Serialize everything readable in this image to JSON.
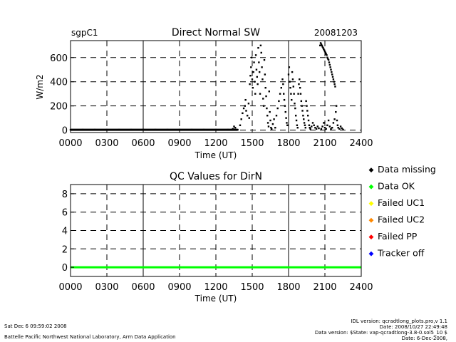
{
  "chart_data": [
    {
      "type": "scatter",
      "site": "sgpC1",
      "title": "Direct Normal SW",
      "date": "20081203",
      "xlabel": "Time (UT)",
      "ylabel": "W/m2",
      "xlim": [
        0,
        2400
      ],
      "ylim": [
        -20,
        740
      ],
      "x_ticks": [
        "0000",
        "0300",
        "0600",
        "0900",
        "1200",
        "1500",
        "1800",
        "2100",
        "2400"
      ],
      "y_ticks": [
        "0",
        "200",
        "400",
        "600"
      ],
      "grid": true,
      "series": [
        {
          "color": "#000000",
          "points": [
            [
              0,
              3
            ],
            [
              100,
              3
            ],
            [
              200,
              3
            ],
            [
              300,
              3
            ],
            [
              400,
              3
            ],
            [
              500,
              3
            ],
            [
              600,
              3
            ],
            [
              700,
              3
            ],
            [
              800,
              3
            ],
            [
              900,
              3
            ],
            [
              1000,
              3
            ],
            [
              1100,
              3
            ],
            [
              1200,
              3
            ],
            [
              1300,
              3
            ],
            [
              1380,
              3
            ],
            [
              1340,
              10
            ],
            [
              1350,
              30
            ],
            [
              1360,
              20
            ],
            [
              1400,
              40
            ],
            [
              1410,
              90
            ],
            [
              1420,
              140
            ],
            [
              1430,
              180
            ],
            [
              1440,
              200
            ],
            [
              1445,
              250
            ],
            [
              1450,
              160
            ],
            [
              1460,
              120
            ],
            [
              1470,
              220
            ],
            [
              1475,
              100
            ],
            [
              1480,
              380
            ],
            [
              1485,
              450
            ],
            [
              1490,
              520
            ],
            [
              1495,
              600
            ],
            [
              1500,
              420
            ],
            [
              1505,
              350
            ],
            [
              1510,
              480
            ],
            [
              1515,
              560
            ],
            [
              1520,
              400
            ],
            [
              1525,
              300
            ],
            [
              1530,
              620
            ],
            [
              1535,
              500
            ],
            [
              1540,
              440
            ],
            [
              1545,
              380
            ],
            [
              1550,
              680
            ],
            [
              1555,
              560
            ],
            [
              1560,
              480
            ],
            [
              1565,
              300
            ],
            [
              1570,
              700
            ],
            [
              1575,
              640
            ],
            [
              1580,
              520
            ],
            [
              1585,
              420
            ],
            [
              1590,
              260
            ],
            [
              1595,
              200
            ],
            [
              1600,
              580
            ],
            [
              1605,
              460
            ],
            [
              1610,
              350
            ],
            [
              1615,
              280
            ],
            [
              1620,
              180
            ],
            [
              1625,
              120
            ],
            [
              1630,
              60
            ],
            [
              1635,
              30
            ],
            [
              1640,
              320
            ],
            [
              1645,
              150
            ],
            [
              1650,
              80
            ],
            [
              1655,
              20
            ],
            [
              1660,
              10
            ],
            [
              1670,
              50
            ],
            [
              1680,
              90
            ],
            [
              1690,
              20
            ],
            [
              1700,
              120
            ],
            [
              1710,
              180
            ],
            [
              1720,
              240
            ],
            [
              1730,
              300
            ],
            [
              1740,
              350
            ],
            [
              1750,
              420
            ],
            [
              1755,
              380
            ],
            [
              1760,
              300
            ],
            [
              1765,
              250
            ],
            [
              1770,
              200
            ],
            [
              1775,
              150
            ],
            [
              1780,
              100
            ],
            [
              1785,
              60
            ],
            [
              1790,
              40
            ],
            [
              1800,
              460
            ],
            [
              1805,
              520
            ],
            [
              1810,
              400
            ],
            [
              1815,
              350
            ],
            [
              1820,
              300
            ],
            [
              1825,
              250
            ],
            [
              1830,
              480
            ],
            [
              1835,
              420
            ],
            [
              1840,
              360
            ],
            [
              1845,
              300
            ],
            [
              1850,
              220
            ],
            [
              1855,
              180
            ],
            [
              1860,
              120
            ],
            [
              1865,
              80
            ],
            [
              1870,
              40
            ],
            [
              1875,
              20
            ],
            [
              1880,
              300
            ],
            [
              1885,
              380
            ],
            [
              1890,
              420
            ],
            [
              1895,
              350
            ],
            [
              1900,
              300
            ],
            [
              1905,
              240
            ],
            [
              1910,
              200
            ],
            [
              1915,
              160
            ],
            [
              1920,
              120
            ],
            [
              1925,
              90
            ],
            [
              1930,
              60
            ],
            [
              1935,
              40
            ],
            [
              1940,
              20
            ],
            [
              1945,
              240
            ],
            [
              1950,
              200
            ],
            [
              1955,
              160
            ],
            [
              1960,
              120
            ],
            [
              1965,
              80
            ],
            [
              1970,
              40
            ],
            [
              1975,
              20
            ],
            [
              1980,
              10
            ],
            [
              1990,
              30
            ],
            [
              2000,
              60
            ],
            [
              2010,
              40
            ],
            [
              2020,
              20
            ],
            [
              2030,
              10
            ],
            [
              2040,
              30
            ],
            [
              2050,
              15
            ],
            [
              2060,
              700
            ],
            [
              2065,
              720
            ],
            [
              2070,
              710
            ],
            [
              2075,
              700
            ],
            [
              2080,
              690
            ],
            [
              2085,
              680
            ],
            [
              2090,
              670
            ],
            [
              2095,
              660
            ],
            [
              2100,
              650
            ],
            [
              2105,
              640
            ],
            [
              2110,
              630
            ],
            [
              2115,
              620
            ],
            [
              2120,
              600
            ],
            [
              2125,
              590
            ],
            [
              2130,
              580
            ],
            [
              2135,
              560
            ],
            [
              2140,
              540
            ],
            [
              2145,
              520
            ],
            [
              2150,
              500
            ],
            [
              2155,
              480
            ],
            [
              2160,
              460
            ],
            [
              2165,
              440
            ],
            [
              2170,
              420
            ],
            [
              2175,
              400
            ],
            [
              2180,
              380
            ],
            [
              2185,
              360
            ],
            [
              2070,
              10
            ],
            [
              2080,
              30
            ],
            [
              2090,
              60
            ],
            [
              2100,
              20
            ],
            [
              2110,
              10
            ],
            [
              2120,
              40
            ],
            [
              2130,
              80
            ],
            [
              2140,
              30
            ],
            [
              2150,
              10
            ],
            [
              2160,
              20
            ],
            [
              2170,
              60
            ],
            [
              2180,
              90
            ],
            [
              2190,
              150
            ],
            [
              2195,
              200
            ],
            [
              2200,
              80
            ],
            [
              2205,
              40
            ],
            [
              2210,
              20
            ],
            [
              2220,
              10
            ],
            [
              2230,
              30
            ],
            [
              2240,
              15
            ],
            [
              2250,
              5
            ]
          ]
        }
      ]
    },
    {
      "type": "scatter",
      "title": "QC Values for DirN",
      "xlabel": "Time (UT)",
      "xlim": [
        0,
        2400
      ],
      "ylim": [
        -1,
        9
      ],
      "x_ticks": [
        "0000",
        "0300",
        "0600",
        "0900",
        "1200",
        "1500",
        "1800",
        "2100",
        "2400"
      ],
      "y_ticks": [
        "0",
        "2",
        "4",
        "6",
        "8"
      ],
      "grid": true,
      "qc_line": {
        "value": 0,
        "from": 0,
        "to": 2400,
        "color": "#00ff00"
      },
      "legend": [
        {
          "label": "Data missing",
          "color": "#000000"
        },
        {
          "label": "Data OK",
          "color": "#00ff00"
        },
        {
          "label": "Failed UC1",
          "color": "#ffff00"
        },
        {
          "label": "Failed UC2",
          "color": "#ff8800"
        },
        {
          "label": "Failed PP",
          "color": "#ff0000"
        },
        {
          "label": "Tracker off",
          "color": "#0000ff"
        }
      ]
    }
  ],
  "footer": {
    "left_line1": "Sat Dec  6 09:59:02 2008",
    "left_line2": "Battelle Pacific Northwest National Laboratory, Arm Data Application",
    "right_line1": "IDL version: qcradtlong_plots.pro,v 1.1",
    "right_line2": "Date: 2008/10/27 22:49:48",
    "right_line3": "Data version: $State: vap-qcradtlong-3.8-0.sol5_10 $",
    "right_line4": "Date: 6-Dec-2008,"
  }
}
